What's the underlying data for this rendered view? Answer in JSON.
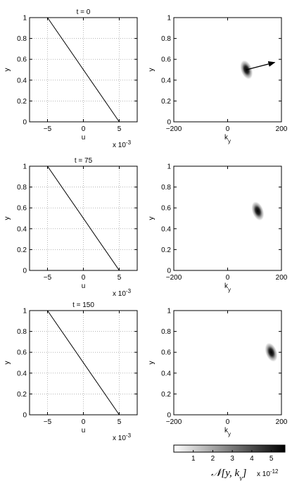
{
  "chart_data": [
    {
      "type": "line",
      "panel": "u-profile",
      "title": "t = 0",
      "xlabel": "u",
      "ylabel": "y",
      "x_exponent_label": "x 10",
      "x_exponent": "-3",
      "xlim": [
        -7.5,
        7.5
      ],
      "ylim": [
        0,
        1
      ],
      "xticks": [
        -5,
        0,
        5
      ],
      "xtick_labels": [
        "−5",
        "0",
        "5"
      ],
      "yticks": [
        0,
        0.2,
        0.4,
        0.6,
        0.8,
        1
      ],
      "ytick_labels": [
        "0",
        "0.2",
        "0.4",
        "0.6",
        "0.8",
        "1"
      ],
      "grid": true,
      "series": [
        {
          "x": [
            -5,
            5
          ],
          "y": [
            1,
            0
          ]
        }
      ]
    },
    {
      "type": "heatmap",
      "panel": "wave-action",
      "xlabel": "k",
      "xlabel_sub": "y",
      "ylabel": "y",
      "xlim": [
        -200,
        200
      ],
      "ylim": [
        0,
        1
      ],
      "xticks": [
        -200,
        0,
        200
      ],
      "xtick_labels": [
        "−200",
        "0",
        "200"
      ],
      "yticks": [
        0,
        0.2,
        0.4,
        0.6,
        0.8,
        1
      ],
      "ytick_labels": [
        "0",
        "0.2",
        "0.4",
        "0.6",
        "0.8",
        "1"
      ],
      "grid": false,
      "blob": {
        "x": 70,
        "y": 0.5,
        "peak": 5.5
      },
      "arrow": {
        "x1": 70,
        "y1": 0.5,
        "x2": 175,
        "y2": 0.57
      }
    },
    {
      "type": "line",
      "panel": "u-profile",
      "title": "t = 75",
      "xlabel": "u",
      "ylabel": "y",
      "x_exponent_label": "x 10",
      "x_exponent": "-3",
      "xlim": [
        -7.5,
        7.5
      ],
      "ylim": [
        0,
        1
      ],
      "xticks": [
        -5,
        0,
        5
      ],
      "xtick_labels": [
        "−5",
        "0",
        "5"
      ],
      "yticks": [
        0,
        0.2,
        0.4,
        0.6,
        0.8,
        1
      ],
      "ytick_labels": [
        "0",
        "0.2",
        "0.4",
        "0.6",
        "0.8",
        "1"
      ],
      "grid": true,
      "series": [
        {
          "x": [
            -5,
            5
          ],
          "y": [
            1,
            0
          ]
        }
      ]
    },
    {
      "type": "heatmap",
      "panel": "wave-action",
      "xlabel": "k",
      "xlabel_sub": "y",
      "ylabel": "y",
      "xlim": [
        -200,
        200
      ],
      "ylim": [
        0,
        1
      ],
      "xticks": [
        -200,
        0,
        200
      ],
      "xtick_labels": [
        "−200",
        "0",
        "200"
      ],
      "yticks": [
        0,
        0.2,
        0.4,
        0.6,
        0.8,
        1
      ],
      "ytick_labels": [
        "0",
        "0.2",
        "0.4",
        "0.6",
        "0.8",
        "1"
      ],
      "grid": false,
      "blob": {
        "x": 112,
        "y": 0.57,
        "peak": 5.3
      }
    },
    {
      "type": "line",
      "panel": "u-profile",
      "title": "t = 150",
      "xlabel": "u",
      "ylabel": "y",
      "x_exponent_label": "x 10",
      "x_exponent": "-3",
      "xlim": [
        -7.5,
        7.5
      ],
      "ylim": [
        0,
        1
      ],
      "xticks": [
        -5,
        0,
        5
      ],
      "xtick_labels": [
        "−5",
        "0",
        "5"
      ],
      "yticks": [
        0,
        0.2,
        0.4,
        0.6,
        0.8,
        1
      ],
      "ytick_labels": [
        "0",
        "0.2",
        "0.4",
        "0.6",
        "0.8",
        "1"
      ],
      "grid": true,
      "series": [
        {
          "x": [
            -5,
            5
          ],
          "y": [
            1,
            0
          ]
        }
      ]
    },
    {
      "type": "heatmap",
      "panel": "wave-action",
      "xlabel": "k",
      "xlabel_sub": "y",
      "ylabel": "y",
      "xlim": [
        -200,
        200
      ],
      "ylim": [
        0,
        1
      ],
      "xticks": [
        -200,
        0,
        200
      ],
      "xtick_labels": [
        "−200",
        "0",
        "200"
      ],
      "yticks": [
        0,
        0.2,
        0.4,
        0.6,
        0.8,
        1
      ],
      "ytick_labels": [
        "0",
        "0.2",
        "0.4",
        "0.6",
        "0.8",
        "1"
      ],
      "grid": false,
      "blob": {
        "x": 162,
        "y": 0.6,
        "peak": 5.5
      }
    }
  ],
  "colorbar": {
    "ticks": [
      1,
      2,
      3,
      4,
      5
    ],
    "tick_labels": [
      "1",
      "2",
      "3",
      "4",
      "5"
    ],
    "range": [
      0,
      5.7
    ],
    "label_main": "𝒩[y, k",
    "label_sub": "y",
    "label_close": "]",
    "label_exponent_base": "x 10",
    "label_exponent": "-12"
  }
}
